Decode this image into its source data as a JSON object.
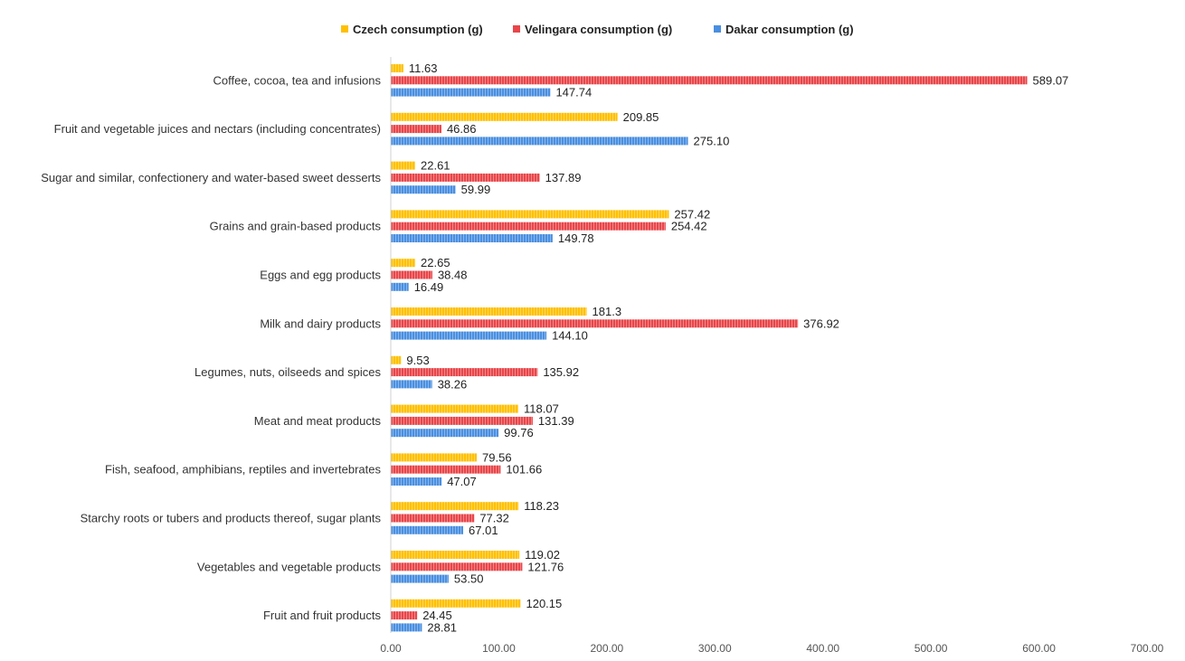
{
  "chart_data": {
    "type": "bar",
    "orientation": "horizontal",
    "categories": [
      "Coffee, cocoa, tea and infusions",
      "Fruit and vegetable juices and nectars (including concentrates)",
      "Sugar and similar, confectionery and water-based sweet desserts",
      "Grains and grain-based products",
      "Eggs and egg products",
      "Milk and dairy products",
      "Legumes, nuts, oilseeds and spices",
      "Meat and meat products",
      "Fish, seafood, amphibians, reptiles and invertebrates",
      "Starchy roots or tubers and products thereof, sugar plants",
      "Vegetables and vegetable products",
      "Fruit and fruit products"
    ],
    "series": [
      {
        "name": "Czech consumption (g)",
        "color": "#FFC000",
        "values": [
          11.63,
          209.85,
          22.61,
          257.42,
          22.65,
          181.3,
          9.53,
          118.07,
          79.56,
          118.23,
          119.02,
          120.15
        ],
        "labels": [
          "11.63",
          "209.85",
          "22.61",
          "257.42",
          "22.65",
          "181.3",
          "9.53",
          "118.07",
          "79.56",
          "118.23",
          "119.02",
          "120.15"
        ]
      },
      {
        "name": "Velingara consumption (g)",
        "color": "#E8464A",
        "values": [
          589.07,
          46.86,
          137.89,
          254.42,
          38.48,
          376.92,
          135.92,
          131.39,
          101.66,
          77.32,
          121.76,
          24.45
        ],
        "labels": [
          "589.07",
          "46.86",
          "137.89",
          "254.42",
          "38.48",
          "376.92",
          "135.92",
          "131.39",
          "101.66",
          "77.32",
          "121.76",
          "24.45"
        ]
      },
      {
        "name": "Dakar consumption (g)",
        "color": "#4A8FE0",
        "values": [
          147.74,
          275.1,
          59.99,
          149.78,
          16.49,
          144.1,
          38.26,
          99.76,
          47.07,
          67.01,
          53.5,
          28.81
        ],
        "labels": [
          "147.74",
          "275.10",
          "59.99",
          "149.78",
          "16.49",
          "144.10",
          "38.26",
          "99.76",
          "47.07",
          "67.01",
          "53.50",
          "28.81"
        ]
      }
    ],
    "xlim": [
      0,
      700
    ],
    "xticks": [
      0,
      100,
      200,
      300,
      400,
      500,
      600,
      700
    ],
    "xtick_labels": [
      "0.00",
      "100.00",
      "200.00",
      "300.00",
      "400.00",
      "500.00",
      "600.00",
      "700.00"
    ],
    "grid": false,
    "legend_position": "top-center",
    "title": "",
    "xlabel": "",
    "ylabel": ""
  }
}
